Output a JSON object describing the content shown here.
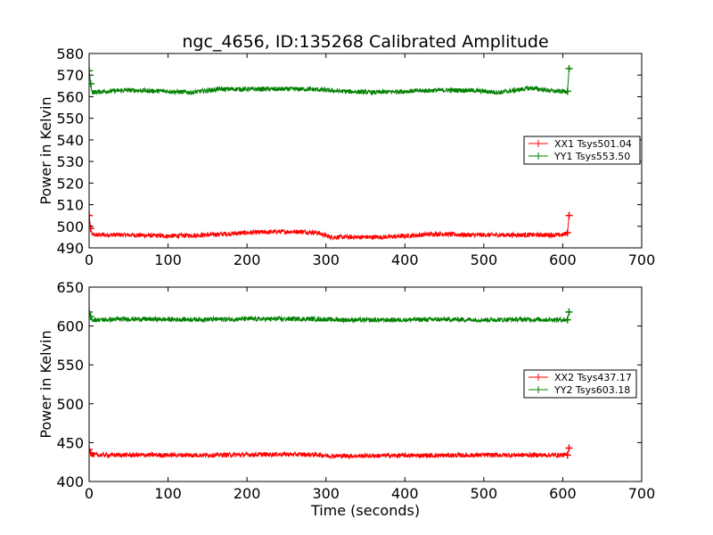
{
  "figure": {
    "title": "ngc_4656, ID:135268 Calibrated Amplitude"
  },
  "chart_data": [
    {
      "type": "line",
      "title": "ngc_4656, ID:135268 Calibrated Amplitude",
      "xlabel": "",
      "ylabel": "Power in Kelvin",
      "xlim": [
        0,
        700
      ],
      "ylim": [
        490,
        580
      ],
      "xticks": [
        0,
        100,
        200,
        300,
        400,
        500,
        600,
        700
      ],
      "yticks": [
        490,
        500,
        510,
        520,
        530,
        540,
        550,
        560,
        570,
        580
      ],
      "grid": false,
      "legend_position": "right",
      "series": [
        {
          "name": "XX1 Tsys501.04",
          "color": "#ff0000",
          "x": [
            0,
            2,
            4,
            20,
            50,
            100,
            150,
            200,
            240,
            270,
            290,
            305,
            330,
            370,
            400,
            440,
            480,
            520,
            560,
            600,
            606,
            608
          ],
          "y": [
            505,
            499,
            496,
            496,
            496,
            495.5,
            496,
            497,
            497.5,
            497.5,
            497,
            495,
            495,
            495,
            495.5,
            496.5,
            496,
            496,
            496,
            496,
            497,
            505
          ]
        },
        {
          "name": "YY1 Tsys553.50",
          "color": "#008000",
          "x": [
            0,
            2,
            4,
            20,
            50,
            100,
            130,
            165,
            200,
            240,
            280,
            320,
            360,
            400,
            440,
            480,
            520,
            560,
            590,
            606,
            608
          ],
          "y": [
            572,
            566,
            562,
            562.5,
            563,
            562.5,
            562,
            563.5,
            563.5,
            563.5,
            563.5,
            562.5,
            562,
            562.5,
            563,
            563,
            562,
            564,
            562.5,
            562.5,
            573
          ]
        }
      ]
    },
    {
      "type": "line",
      "title": "",
      "xlabel": "Time (seconds)",
      "ylabel": "Power in Kelvin",
      "xlim": [
        0,
        700
      ],
      "ylim": [
        400,
        650
      ],
      "xticks": [
        0,
        100,
        200,
        300,
        400,
        500,
        600,
        700
      ],
      "yticks": [
        400,
        450,
        500,
        550,
        600,
        650
      ],
      "grid": false,
      "legend_position": "right",
      "series": [
        {
          "name": "XX2 Tsys437.17",
          "color": "#ff0000",
          "x": [
            0,
            2,
            4,
            20,
            50,
            100,
            150,
            200,
            250,
            290,
            305,
            350,
            400,
            450,
            500,
            550,
            600,
            606,
            608
          ],
          "y": [
            441,
            437,
            434,
            434,
            434,
            434,
            434,
            434.5,
            435,
            434.5,
            433,
            433,
            433.5,
            433.5,
            434,
            434,
            434,
            434,
            443
          ]
        },
        {
          "name": "YY2 Tsys603.18",
          "color": "#008000",
          "x": [
            0,
            2,
            4,
            20,
            50,
            100,
            150,
            200,
            250,
            280,
            320,
            360,
            400,
            450,
            500,
            550,
            600,
            606,
            608
          ],
          "y": [
            618,
            612,
            608,
            608,
            609,
            608.5,
            608.5,
            609,
            609,
            609,
            608,
            607.5,
            608,
            608.5,
            608,
            608.5,
            608,
            608,
            618
          ]
        }
      ]
    }
  ]
}
